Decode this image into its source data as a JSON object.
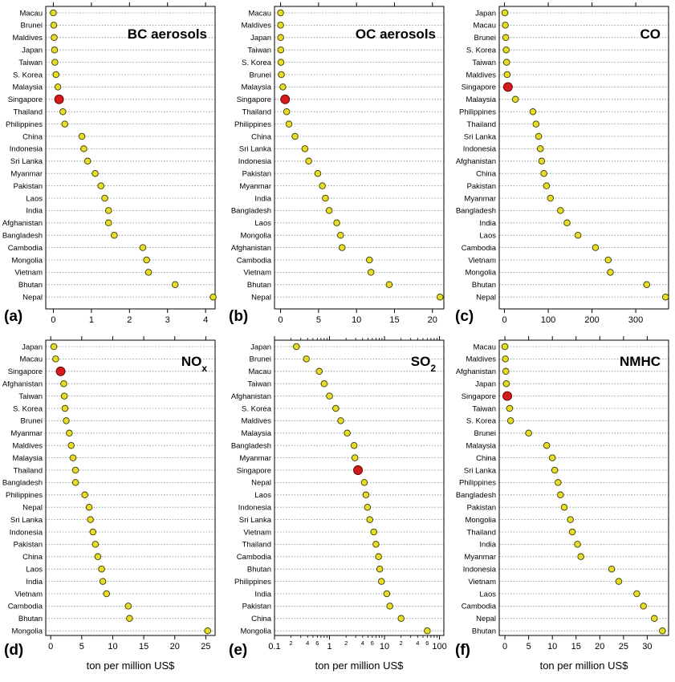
{
  "x_axis_label": "ton per million US$",
  "chart_data": [
    {
      "type": "dot",
      "panel_label": "(a)",
      "title": "BC aerosols",
      "title_sub": "",
      "x_scale": "linear",
      "xlim": [
        -0.2,
        4.25
      ],
      "ticks": [
        0,
        1,
        2,
        3,
        4
      ],
      "tick_labels": [
        "0",
        "1",
        "2",
        "3",
        "4"
      ],
      "categories": [
        "Macau",
        "Brunei",
        "Maldives",
        "Japan",
        "Taiwan",
        "S. Korea",
        "Malaysia",
        "Singapore",
        "Thailand",
        "Philippines",
        "China",
        "Indonesia",
        "Sri Lanka",
        "Myanmar",
        "Pakistan",
        "Laos",
        "India",
        "Afghanistan",
        "Bangladesh",
        "Cambodia",
        "Mongolia",
        "Vietnam",
        "Bhutan",
        "Nepal"
      ],
      "values": [
        0.0,
        0.01,
        0.02,
        0.03,
        0.04,
        0.07,
        0.12,
        0.15,
        0.25,
        0.3,
        0.75,
        0.8,
        0.9,
        1.1,
        1.25,
        1.35,
        1.45,
        1.45,
        1.6,
        2.35,
        2.45,
        2.5,
        3.2,
        4.2
      ],
      "highlight": "Singapore"
    },
    {
      "type": "dot",
      "panel_label": "(b)",
      "title": "OC aerosols",
      "title_sub": "",
      "x_scale": "linear",
      "xlim": [
        -0.8,
        21.5
      ],
      "ticks": [
        0,
        5,
        10,
        15,
        20
      ],
      "tick_labels": [
        "0",
        "5",
        "10",
        "15",
        "20"
      ],
      "categories": [
        "Macau",
        "Maldives",
        "Japan",
        "Taiwan",
        "S. Korea",
        "Brunei",
        "Malaysia",
        "Singapore",
        "Thailand",
        "Philippines",
        "China",
        "Sri Lanka",
        "Indonesia",
        "Pakistan",
        "Myanmar",
        "India",
        "Bangladesh",
        "Laos",
        "Mongolia",
        "Afghanistan",
        "Cambodia",
        "Vietnam",
        "Bhutan",
        "Nepal"
      ],
      "values": [
        0.0,
        0.0,
        0.01,
        0.02,
        0.05,
        0.1,
        0.3,
        0.6,
        0.8,
        1.1,
        1.9,
        3.2,
        3.7,
        4.9,
        5.5,
        5.9,
        6.4,
        7.4,
        7.9,
        8.1,
        11.7,
        11.9,
        14.3,
        21.0
      ],
      "highlight": "Singapore"
    },
    {
      "type": "dot",
      "panel_label": "(c)",
      "title": "CO",
      "title_sub": "",
      "x_scale": "linear",
      "xlim": [
        -12,
        375
      ],
      "ticks": [
        0,
        100,
        200,
        300
      ],
      "tick_labels": [
        "0",
        "100",
        "200",
        "300"
      ],
      "categories": [
        "Japan",
        "Macau",
        "Brunei",
        "S. Korea",
        "Taiwan",
        "Maldives",
        "Singapore",
        "Malaysia",
        "Philippines",
        "Thailand",
        "Sri Lanka",
        "Indonesia",
        "Afghanistan",
        "China",
        "Pakistan",
        "Myanmar",
        "Bangladesh",
        "India",
        "Laos",
        "Cambodia",
        "Vietnam",
        "Mongolia",
        "Bhutan",
        "Nepal"
      ],
      "values": [
        1,
        2,
        3,
        4,
        5,
        6,
        8,
        25,
        65,
        72,
        78,
        82,
        85,
        90,
        96,
        105,
        128,
        143,
        168,
        208,
        237,
        242,
        325,
        368
      ],
      "highlight": "Singapore"
    },
    {
      "type": "dot",
      "panel_label": "(d)",
      "title": "NO",
      "title_sub": "x",
      "x_scale": "linear",
      "xlim": [
        -0.8,
        26.5
      ],
      "ticks": [
        0,
        5,
        10,
        15,
        20,
        25
      ],
      "tick_labels": [
        "0",
        "5",
        "10",
        "15",
        "20",
        "25"
      ],
      "categories": [
        "Japan",
        "Macau",
        "Singapore",
        "Afghanistan",
        "Taiwan",
        "S. Korea",
        "Brunei",
        "Myanmar",
        "Maldives",
        "Malaysia",
        "Thailand",
        "Bangladesh",
        "Philippines",
        "Nepal",
        "Sri Lanka",
        "Indonesia",
        "Pakistan",
        "China",
        "Laos",
        "India",
        "Vietnam",
        "Cambodia",
        "Bhutan",
        "Mongolia"
      ],
      "values": [
        0.5,
        0.8,
        1.6,
        2.1,
        2.2,
        2.3,
        2.5,
        3.0,
        3.3,
        3.6,
        4.0,
        4.0,
        5.5,
        6.2,
        6.4,
        6.8,
        7.2,
        7.6,
        8.2,
        8.4,
        9.0,
        12.5,
        12.7,
        25.3
      ],
      "highlight": "Singapore"
    },
    {
      "type": "dot",
      "panel_label": "(e)",
      "title": "SO",
      "title_sub": "2",
      "x_scale": "log",
      "xlim": [
        0.1,
        120
      ],
      "ticks": [
        0.1,
        1,
        10,
        100
      ],
      "tick_labels": [
        "0.1",
        "1",
        "10",
        "100"
      ],
      "minor_ticks": [
        2,
        4,
        6,
        20,
        40,
        60,
        2,
        4,
        6
      ],
      "minor_tick_values": [
        0.2,
        0.4,
        0.6,
        2,
        4,
        6,
        20,
        40,
        60
      ],
      "minor_tick_labels": [
        "2",
        "4",
        "6",
        "2",
        "4",
        "6",
        "2",
        "4",
        "6"
      ],
      "categories": [
        "Japan",
        "Brunei",
        "Macau",
        "Taiwan",
        "Afghanistan",
        "S. Korea",
        "Maldives",
        "Malaysia",
        "Bangladesh",
        "Myanmar",
        "Singapore",
        "Nepal",
        "Laos",
        "Indonesia",
        "Sri Lanka",
        "Vietnam",
        "Thailand",
        "Cambodia",
        "Bhutan",
        "Philippines",
        "India",
        "Pakistan",
        "China",
        "Mongolia"
      ],
      "values": [
        0.25,
        0.38,
        0.65,
        0.8,
        1.0,
        1.3,
        1.6,
        2.1,
        2.8,
        2.9,
        3.3,
        4.3,
        4.6,
        4.9,
        5.4,
        6.4,
        7.0,
        7.8,
        8.2,
        8.8,
        11.0,
        12.5,
        20.0,
        60.0
      ],
      "highlight": "Singapore"
    },
    {
      "type": "dot",
      "panel_label": "(f)",
      "title": "NMHC",
      "title_sub": "",
      "x_scale": "linear",
      "xlim": [
        -1.2,
        34.5
      ],
      "ticks": [
        0,
        5,
        10,
        15,
        20,
        25,
        30
      ],
      "tick_labels": [
        "0",
        "5",
        "10",
        "15",
        "20",
        "25",
        "30"
      ],
      "categories": [
        "Macau",
        "Maldives",
        "Afghanistan",
        "Japan",
        "Singapore",
        "Taiwan",
        "S. Korea",
        "Brunei",
        "Malaysia",
        "China",
        "Sri Lanka",
        "Philippines",
        "Bangladesh",
        "Pakistan",
        "Mongolia",
        "Thailand",
        "India",
        "Myanmar",
        "Indonesia",
        "Vietnam",
        "Laos",
        "Cambodia",
        "Nepal",
        "Bhutan"
      ],
      "values": [
        0.0,
        0.1,
        0.2,
        0.3,
        0.5,
        1.0,
        1.2,
        5.0,
        8.8,
        10.0,
        10.5,
        11.2,
        11.7,
        12.5,
        13.8,
        14.2,
        15.3,
        16.0,
        22.5,
        24.0,
        27.8,
        29.2,
        31.5,
        33.2
      ],
      "highlight": "Singapore"
    }
  ]
}
